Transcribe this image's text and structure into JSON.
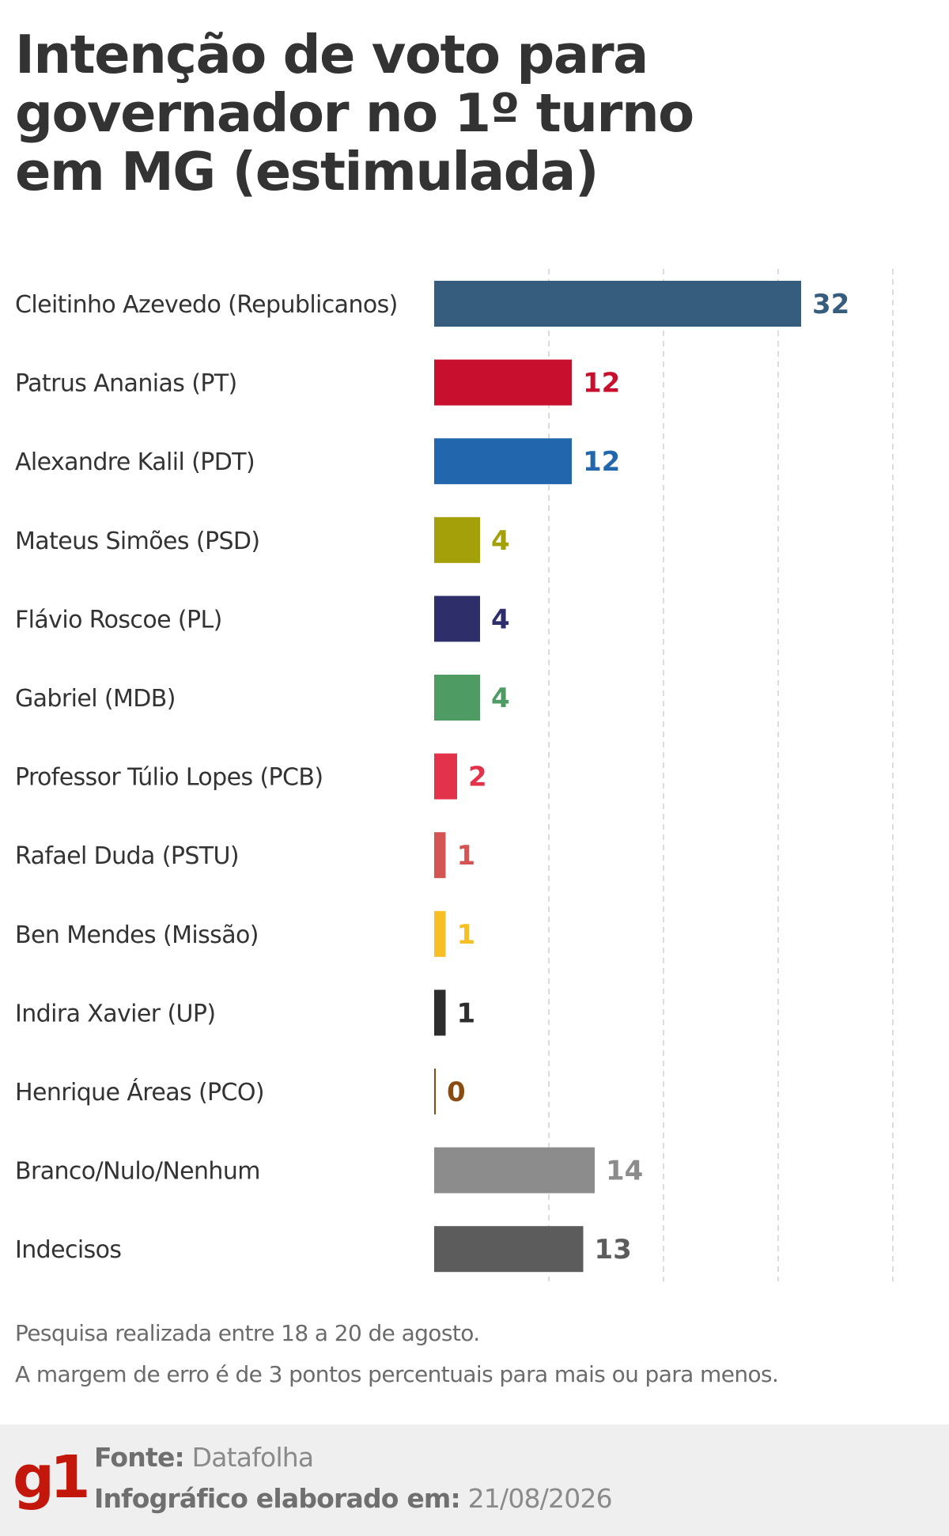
{
  "header": {
    "title_lines": [
      "Intenção de voto para",
      "governador no 1º turno",
      "em MG (estimulada)"
    ]
  },
  "chart_data": {
    "type": "bar",
    "orientation": "horizontal",
    "title": "Intenção de voto para governador no 1º turno em MG (estimulada)",
    "xlim": [
      0,
      40
    ],
    "grid": true,
    "categories": [
      "Cleitinho Azevedo (Republicanos)",
      "Patrus Ananias (PT)",
      "Alexandre Kalil (PDT)",
      "Mateus Simões (PSD)",
      "Flávio Roscoe (PL)",
      "Gabriel (MDB)",
      "Professor Túlio Lopes (PCB)",
      "Rafael Duda (PSTU)",
      "Ben Mendes (Missão)",
      "Indira Xavier (UP)",
      "Henrique Áreas (PCO)",
      "Branco/Nulo/Nenhum",
      "Indecisos"
    ],
    "values": [
      32,
      12,
      12,
      4,
      4,
      4,
      2,
      1,
      1,
      1,
      0,
      14,
      13
    ],
    "colors": [
      "#365d7d",
      "#c8102e",
      "#2266ad",
      "#a4a00a",
      "#2e2e6b",
      "#4e9b63",
      "#e2334a",
      "#d45454",
      "#f6bf26",
      "#2d2d2d",
      "#8a4a12",
      "#8c8c8c",
      "#5c5c5c"
    ]
  },
  "notes": {
    "line1": "Pesquisa realizada entre 18 a 20 de agosto.",
    "line2": "A margem de erro é de 3 pontos percentuais para mais ou para menos."
  },
  "footer": {
    "logo": "g1",
    "source_label": "Fonte:",
    "source_value": "Datafolha",
    "date_label": "Infográfico elaborado em:",
    "date_value": "21/08/2026"
  }
}
